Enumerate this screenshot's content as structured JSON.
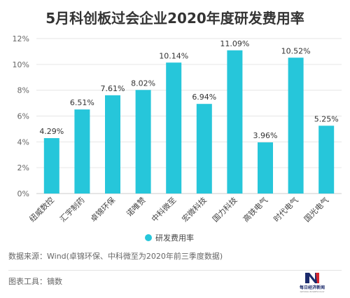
{
  "chart_data": {
    "type": "bar",
    "title": "5月科创板过会企业2020年度研发费用率",
    "categories": [
      "纽威数控",
      "汇宇制药",
      "卓锦环保",
      "诺唯赞",
      "中科微至",
      "宏微科技",
      "国力科技",
      "高铁电气",
      "时代电气",
      "国光电气"
    ],
    "series": [
      {
        "name": "研发费用率",
        "values": [
          4.29,
          6.51,
          7.61,
          8.02,
          10.14,
          6.94,
          11.09,
          3.96,
          10.52,
          5.25
        ],
        "labels": [
          "4.29%",
          "6.51%",
          "7.61%",
          "8.02%",
          "10.14%",
          "6.94%",
          "11.09%",
          "3.96%",
          "10.52%",
          "5.25%"
        ]
      }
    ],
    "ylim": [
      0,
      12
    ],
    "yticks": [
      0,
      2,
      4,
      6,
      8,
      10,
      12
    ],
    "ytick_labels": [
      "0%",
      "2%",
      "4%",
      "6%",
      "8%",
      "10%",
      "12%"
    ],
    "grid": true,
    "legend_position": "bottom",
    "bar_color": "#26C6DA"
  },
  "footer": {
    "source": "数据来源：Wind(卓锦环保、中科微至为2020年前三季度数据)",
    "tool": "图表工具：镝数"
  },
  "logo": {
    "text": "每日经济新闻",
    "subtext": "NATIONAL BUSINESS DAILY"
  },
  "colors": {
    "bar": "#26C6DA",
    "logo_blue": "#1B2A6B",
    "logo_red": "#D7262E"
  }
}
